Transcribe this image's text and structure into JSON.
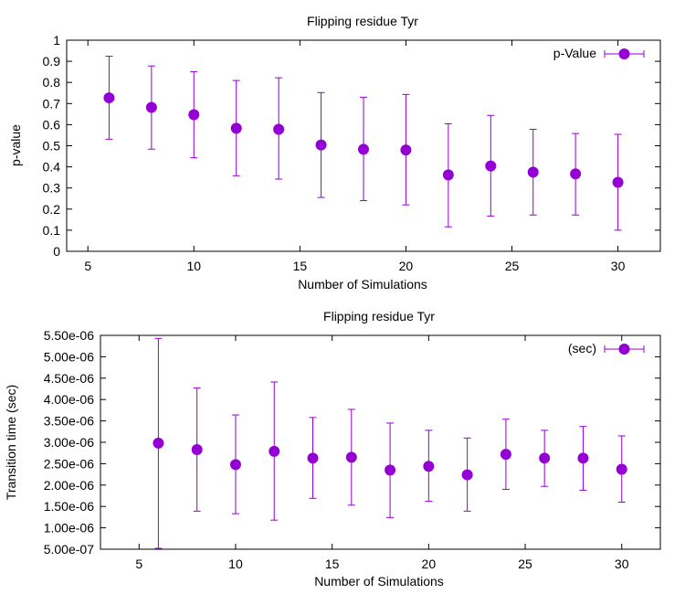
{
  "chart_data": [
    {
      "type": "scatter",
      "title": "Flipping residue  Tyr",
      "xlabel": "Number of Simulations",
      "ylabel": "p-value",
      "xlim": [
        4,
        32
      ],
      "ylim": [
        0,
        1
      ],
      "xticks": [
        5,
        10,
        15,
        20,
        25,
        30
      ],
      "xtick_labels": [
        "5",
        "10",
        "15",
        "20",
        "25",
        "30"
      ],
      "yticks": [
        0,
        0.1,
        0.2,
        0.3,
        0.4,
        0.5,
        0.6,
        0.7,
        0.8,
        0.9,
        1
      ],
      "ytick_labels": [
        "0",
        "0.1",
        "0.2",
        "0.3",
        "0.4",
        "0.5",
        "0.6",
        "0.7",
        "0.8",
        "0.9",
        "1"
      ],
      "legend_position": "top-right",
      "grid": false,
      "series": [
        {
          "name": "p-Value",
          "color": "#9400d3",
          "x": [
            6,
            8,
            10,
            12,
            14,
            16,
            18,
            20,
            22,
            24,
            26,
            28,
            30
          ],
          "y": [
            0.727,
            0.682,
            0.647,
            0.583,
            0.578,
            0.504,
            0.483,
            0.48,
            0.362,
            0.404,
            0.375,
            0.367,
            0.327
          ],
          "y_low": [
            0.531,
            0.484,
            0.443,
            0.358,
            0.342,
            0.255,
            0.24,
            0.22,
            0.116,
            0.167,
            0.172,
            0.172,
            0.1
          ],
          "y_high": [
            0.924,
            0.878,
            0.851,
            0.809,
            0.822,
            0.752,
            0.73,
            0.743,
            0.604,
            0.644,
            0.578,
            0.558,
            0.554
          ]
        }
      ]
    },
    {
      "type": "scatter",
      "title": "Flipping residue  Tyr",
      "xlabel": "Number of Simulations",
      "ylabel": "Transition time  (sec)",
      "xlim": [
        3,
        32
      ],
      "ylim": [
        5e-07,
        5.5e-06
      ],
      "xticks": [
        5,
        10,
        15,
        20,
        25,
        30
      ],
      "xtick_labels": [
        "5",
        "10",
        "15",
        "20",
        "25",
        "30"
      ],
      "yticks": [
        5e-07,
        1e-06,
        1.5e-06,
        2e-06,
        2.5e-06,
        3e-06,
        3.5e-06,
        4e-06,
        4.5e-06,
        5e-06,
        5.5e-06
      ],
      "ytick_labels": [
        "5.00e-07",
        "1.00e-06",
        "1.50e-06",
        "2.00e-06",
        "2.50e-06",
        "3.00e-06",
        "3.50e-06",
        "4.00e-06",
        "4.50e-06",
        "5.00e-06",
        "5.50e-06"
      ],
      "legend_position": "top-right",
      "grid": false,
      "series": [
        {
          "name": "(sec)",
          "color": "#9400d3",
          "x": [
            6,
            8,
            10,
            12,
            14,
            16,
            18,
            20,
            22,
            24,
            26,
            28,
            30
          ],
          "y": [
            2.98e-06,
            2.83e-06,
            2.48e-06,
            2.79e-06,
            2.63e-06,
            2.65e-06,
            2.35e-06,
            2.44e-06,
            2.24e-06,
            2.72e-06,
            2.63e-06,
            2.63e-06,
            2.37e-06
          ],
          "y_low": [
            5.2e-07,
            1.39e-06,
            1.33e-06,
            1.18e-06,
            1.69e-06,
            1.53e-06,
            1.24e-06,
            1.62e-06,
            1.39e-06,
            1.9e-06,
            1.97e-06,
            1.88e-06,
            1.6e-06
          ],
          "y_high": [
            5.43e-06,
            4.27e-06,
            3.64e-06,
            4.41e-06,
            3.58e-06,
            3.77e-06,
            3.45e-06,
            3.28e-06,
            3.1e-06,
            3.54e-06,
            3.28e-06,
            3.37e-06,
            3.15e-06
          ]
        }
      ]
    }
  ]
}
